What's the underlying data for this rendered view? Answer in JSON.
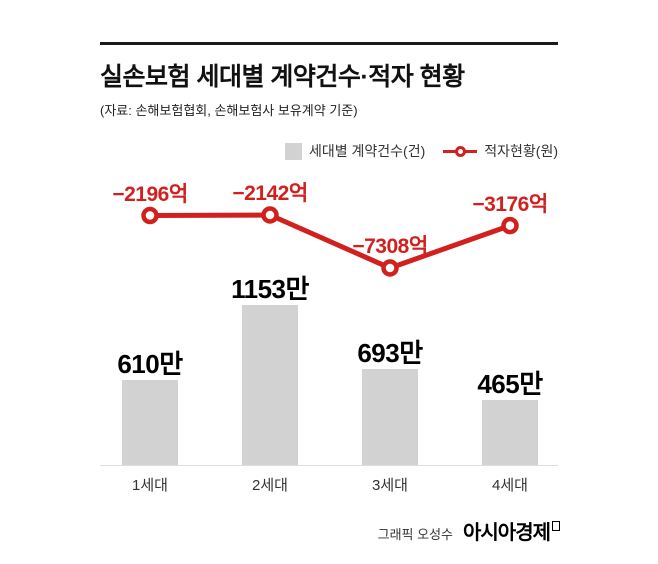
{
  "chart_data": {
    "type": "bar+line",
    "title": "실손보험 세대별 계약건수·적자 현황",
    "source": "(자료: 손해보험협회, 손해보험사 보유계약 기준)",
    "categories": [
      "1세대",
      "2세대",
      "3세대",
      "4세대"
    ],
    "series": [
      {
        "name": "세대별 계약건수(건)",
        "type": "bar",
        "unit": "만",
        "values": [
          610,
          1153,
          693,
          465
        ],
        "labels": [
          "610만",
          "1153만",
          "693만",
          "465만"
        ],
        "color": "#d2d2d2"
      },
      {
        "name": "적자현황(원)",
        "type": "line",
        "unit": "억",
        "values": [
          -2196,
          -2142,
          -7308,
          -3176
        ],
        "labels": [
          "−2196억",
          "−2142억",
          "−7308억",
          "−3176억"
        ],
        "color": "#d2201f"
      }
    ],
    "layout": {
      "axes_hidden": true,
      "grid": false,
      "legend_position": "top-right",
      "bar_ylim": [
        0,
        1200
      ],
      "line_range": [
        -7500,
        0
      ]
    }
  },
  "footer": {
    "credit": "그래픽 오성수",
    "brand": "아시아경제"
  },
  "colors": {
    "bar": "#d2d2d2",
    "line": "#d2201f",
    "rule": "#1a1a1a",
    "text": "#111111"
  }
}
